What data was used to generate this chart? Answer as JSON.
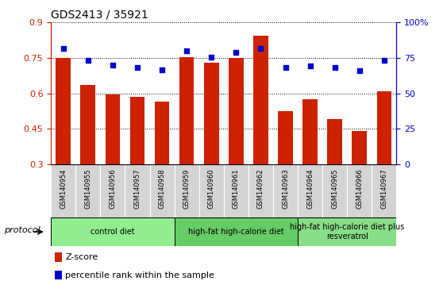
{
  "title": "GDS2413 / 35921",
  "samples": [
    "GSM140954",
    "GSM140955",
    "GSM140956",
    "GSM140957",
    "GSM140958",
    "GSM140959",
    "GSM140960",
    "GSM140961",
    "GSM140962",
    "GSM140963",
    "GSM140964",
    "GSM140965",
    "GSM140966",
    "GSM140967"
  ],
  "zscore": [
    0.75,
    0.635,
    0.595,
    0.585,
    0.565,
    0.755,
    0.73,
    0.75,
    0.845,
    0.525,
    0.575,
    0.49,
    0.44,
    0.61
  ],
  "percentile_left": [
    0.79,
    0.74,
    0.72,
    0.71,
    0.7,
    0.78,
    0.755,
    0.775,
    0.79,
    0.71,
    0.715,
    0.71,
    0.695,
    0.74
  ],
  "bar_color": "#CC2200",
  "dot_color": "#0000CC",
  "ylim_left": [
    0.3,
    0.9
  ],
  "ylim_right": [
    0,
    100
  ],
  "yticks_left": [
    0.3,
    0.45,
    0.6,
    0.75,
    0.9
  ],
  "ytick_labels_left": [
    "0.3",
    "0.45",
    "0.6",
    "0.75",
    "0.9"
  ],
  "yticks_right": [
    0,
    25,
    50,
    75,
    100
  ],
  "ytick_labels_right": [
    "0",
    "25",
    "50",
    "75",
    "100%"
  ],
  "groups": [
    {
      "label": "control diet",
      "start": 0,
      "end": 4,
      "color": "#90EE90"
    },
    {
      "label": "high-fat high-calorie diet",
      "start": 5,
      "end": 9,
      "color": "#66CC66"
    },
    {
      "label": "high-fat high-calorie diet plus\nresveratrol",
      "start": 10,
      "end": 13,
      "color": "#88DD88"
    }
  ],
  "protocol_label": "protocol",
  "legend_zscore": "Z-score",
  "legend_percentile": "percentile rank within the sample",
  "tick_color_left": "#CC2200",
  "tick_color_right": "#0000CC",
  "xtick_bg": "#d4d4d4",
  "xtick_divider": "#888888"
}
